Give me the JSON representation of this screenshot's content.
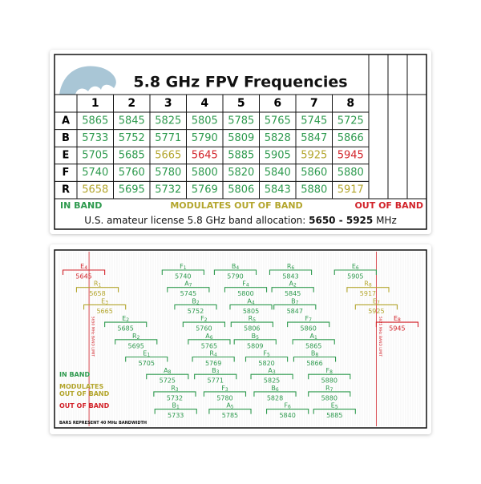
{
  "card": {
    "title": "5.8 GHz FPV Frequencies",
    "columns": [
      "1",
      "2",
      "3",
      "4",
      "5",
      "6",
      "7",
      "8"
    ],
    "rows": [
      {
        "band": "A",
        "cells": [
          {
            "text": "5865",
            "color": "#2e9a4e"
          },
          {
            "text": "5845",
            "color": "#2e9a4e"
          },
          {
            "text": "5825",
            "color": "#2e9a4e"
          },
          {
            "text": "5805",
            "color": "#2e9a4e"
          },
          {
            "text": "5785",
            "color": "#2e9a4e"
          },
          {
            "text": "5765",
            "color": "#2e9a4e"
          },
          {
            "text": "5745",
            "color": "#2e9a4e"
          },
          {
            "text": "5725",
            "color": "#2e9a4e"
          }
        ]
      },
      {
        "band": "B",
        "cells": [
          {
            "text": "5733",
            "color": "#2e9a4e"
          },
          {
            "text": "5752",
            "color": "#2e9a4e"
          },
          {
            "text": "5771",
            "color": "#2e9a4e"
          },
          {
            "text": "5790",
            "color": "#2e9a4e"
          },
          {
            "text": "5809",
            "color": "#2e9a4e"
          },
          {
            "text": "5828",
            "color": "#2e9a4e"
          },
          {
            "text": "5847",
            "color": "#2e9a4e"
          },
          {
            "text": "5866",
            "color": "#2e9a4e"
          }
        ]
      },
      {
        "band": "E",
        "cells": [
          {
            "text": "5705",
            "color": "#2e9a4e"
          },
          {
            "text": "5685",
            "color": "#2e9a4e"
          },
          {
            "text": "5665",
            "color": "#b3a52c"
          },
          {
            "text": "5645",
            "color": "#d2232a"
          },
          {
            "text": "5885",
            "color": "#2e9a4e"
          },
          {
            "text": "5905",
            "color": "#2e9a4e"
          },
          {
            "text": "5925",
            "color": "#b3a52c"
          },
          {
            "text": "5945",
            "color": "#d2232a"
          }
        ]
      },
      {
        "band": "F",
        "cells": [
          {
            "text": "5740",
            "color": "#2e9a4e"
          },
          {
            "text": "5760",
            "color": "#2e9a4e"
          },
          {
            "text": "5780",
            "color": "#2e9a4e"
          },
          {
            "text": "5800",
            "color": "#2e9a4e"
          },
          {
            "text": "5820",
            "color": "#2e9a4e"
          },
          {
            "text": "5840",
            "color": "#2e9a4e"
          },
          {
            "text": "5860",
            "color": "#2e9a4e"
          },
          {
            "text": "5880",
            "color": "#2e9a4e"
          }
        ]
      },
      {
        "band": "R",
        "cells": [
          {
            "text": "5658",
            "color": "#b3a52c"
          },
          {
            "text": "5695",
            "color": "#2e9a4e"
          },
          {
            "text": "5732",
            "color": "#2e9a4e"
          },
          {
            "text": "5769",
            "color": "#2e9a4e"
          },
          {
            "text": "5806",
            "color": "#2e9a4e"
          },
          {
            "text": "5843",
            "color": "#2e9a4e"
          },
          {
            "text": "5880",
            "color": "#2e9a4e"
          },
          {
            "text": "5917",
            "color": "#b3a52c"
          }
        ]
      }
    ],
    "legend": [
      {
        "text": "IN BAND",
        "color": "#2e9a4e"
      },
      {
        "text": "MODULATES OUT OF BAND",
        "color": "#b3a52c"
      },
      {
        "text": "OUT OF BAND",
        "color": "#d2232a"
      }
    ],
    "allocation": {
      "prefix": "U.S. amateur license 5.8 GHz band allocation: ",
      "range": "5650 - 5925",
      "unit": " MHz"
    }
  },
  "chart_data": {
    "type": "range-bars",
    "xlim": [
      5620,
      5970
    ],
    "limits": [
      {
        "value": 5650,
        "label": "5650 MHz BAND LIMIT",
        "color": "#d2232a"
      },
      {
        "value": 5925,
        "label": "5925 MHz BAND LIMIT",
        "color": "#d2232a"
      }
    ],
    "bars": [
      {
        "band": "E",
        "channel": "4",
        "value": 5645,
        "color": "#d2232a"
      },
      {
        "band": "F",
        "channel": "1",
        "value": 5740,
        "color": "#2e9a4e"
      },
      {
        "band": "B",
        "channel": "4",
        "value": 5790,
        "color": "#2e9a4e"
      },
      {
        "band": "R",
        "channel": "6",
        "value": 5843,
        "color": "#2e9a4e"
      },
      {
        "band": "E",
        "channel": "6",
        "value": 5905,
        "color": "#2e9a4e"
      },
      {
        "band": "R",
        "channel": "1",
        "value": 5658,
        "color": "#b3a52c"
      },
      {
        "band": "A",
        "channel": "7",
        "value": 5745,
        "color": "#2e9a4e"
      },
      {
        "band": "F",
        "channel": "4",
        "value": 5800,
        "color": "#2e9a4e"
      },
      {
        "band": "A",
        "channel": "2",
        "value": 5845,
        "color": "#2e9a4e"
      },
      {
        "band": "R",
        "channel": "8",
        "value": 5917,
        "color": "#b3a52c"
      },
      {
        "band": "E",
        "channel": "3",
        "value": 5665,
        "color": "#b3a52c"
      },
      {
        "band": "B",
        "channel": "2",
        "value": 5752,
        "color": "#2e9a4e"
      },
      {
        "band": "A",
        "channel": "4",
        "value": 5805,
        "color": "#2e9a4e"
      },
      {
        "band": "B",
        "channel": "7",
        "value": 5847,
        "color": "#2e9a4e"
      },
      {
        "band": "E",
        "channel": "7",
        "value": 5925,
        "color": "#b3a52c"
      },
      {
        "band": "E",
        "channel": "2",
        "value": 5685,
        "color": "#2e9a4e"
      },
      {
        "band": "F",
        "channel": "2",
        "value": 5760,
        "color": "#2e9a4e"
      },
      {
        "band": "R",
        "channel": "5",
        "value": 5806,
        "color": "#2e9a4e"
      },
      {
        "band": "F",
        "channel": "7",
        "value": 5860,
        "color": "#2e9a4e"
      },
      {
        "band": "E",
        "channel": "8",
        "value": 5945,
        "color": "#d2232a"
      },
      {
        "band": "R",
        "channel": "2",
        "value": 5695,
        "color": "#2e9a4e"
      },
      {
        "band": "A",
        "channel": "6",
        "value": 5765,
        "color": "#2e9a4e"
      },
      {
        "band": "B",
        "channel": "5",
        "value": 5809,
        "color": "#2e9a4e"
      },
      {
        "band": "A",
        "channel": "1",
        "value": 5865,
        "color": "#2e9a4e"
      },
      {
        "band": "E",
        "channel": "1",
        "value": 5705,
        "color": "#2e9a4e"
      },
      {
        "band": "R",
        "channel": "4",
        "value": 5769,
        "color": "#2e9a4e"
      },
      {
        "band": "F",
        "channel": "5",
        "value": 5820,
        "color": "#2e9a4e"
      },
      {
        "band": "B",
        "channel": "8",
        "value": 5866,
        "color": "#2e9a4e"
      },
      {
        "band": "A",
        "channel": "8",
        "value": 5725,
        "color": "#2e9a4e"
      },
      {
        "band": "B",
        "channel": "3",
        "value": 5771,
        "color": "#2e9a4e"
      },
      {
        "band": "A",
        "channel": "3",
        "value": 5825,
        "color": "#2e9a4e"
      },
      {
        "band": "F",
        "channel": "8",
        "value": 5880,
        "color": "#2e9a4e"
      },
      {
        "band": "R",
        "channel": "3",
        "value": 5732,
        "color": "#2e9a4e"
      },
      {
        "band": "F",
        "channel": "3",
        "value": 5780,
        "color": "#2e9a4e"
      },
      {
        "band": "B",
        "channel": "6",
        "value": 5828,
        "color": "#2e9a4e"
      },
      {
        "band": "R",
        "channel": "7",
        "value": 5880,
        "color": "#2e9a4e"
      },
      {
        "band": "B",
        "channel": "1",
        "value": 5733,
        "color": "#2e9a4e"
      },
      {
        "band": "A",
        "channel": "5",
        "value": 5785,
        "color": "#2e9a4e"
      },
      {
        "band": "F",
        "channel": "6",
        "value": 5840,
        "color": "#2e9a4e"
      },
      {
        "band": "E",
        "channel": "5",
        "value": 5885,
        "color": "#2e9a4e"
      }
    ],
    "note_prefix": "BARS REPRESENT ",
    "bandwidth": 40,
    "note_suffix": " MHz BANDWIDTH"
  }
}
